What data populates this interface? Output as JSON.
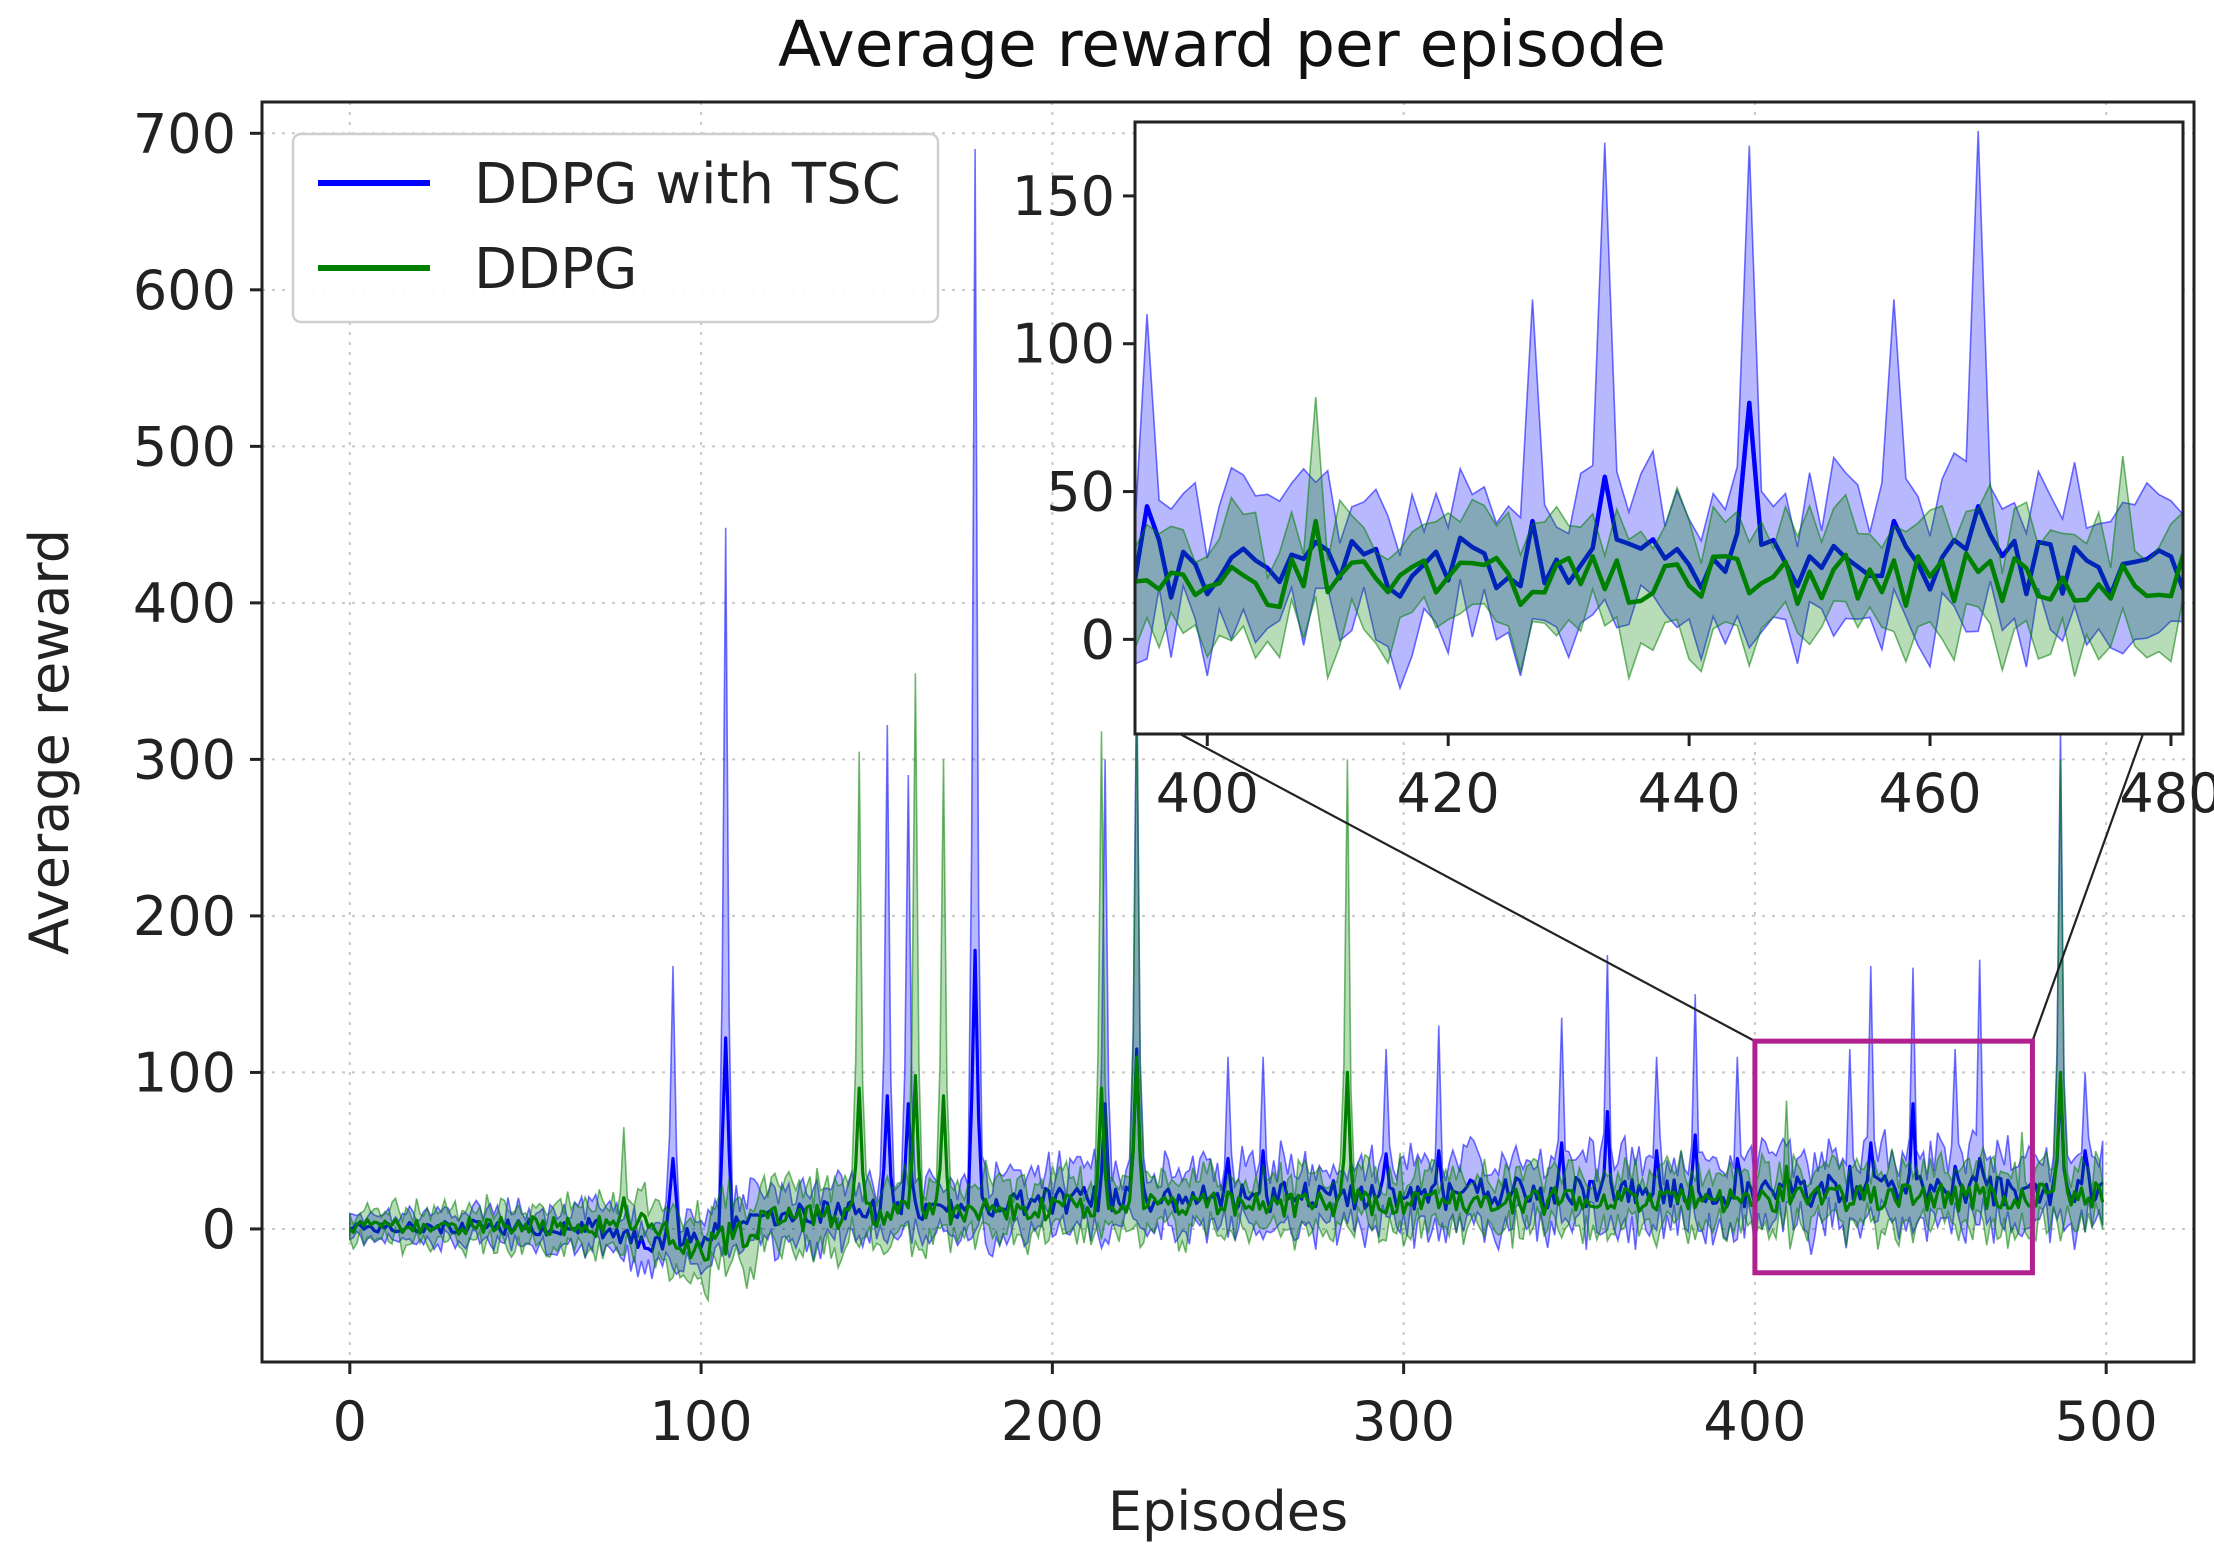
{
  "chart_data": {
    "type": "line",
    "title": "Average reward per episode",
    "xlabel": "Episodes",
    "ylabel": "Average reward",
    "xlim": [
      -25,
      525
    ],
    "ylim": [
      -85,
      720
    ],
    "xticks": [
      0,
      100,
      200,
      300,
      400,
      500
    ],
    "yticks": [
      0,
      100,
      200,
      300,
      400,
      500,
      600,
      700
    ],
    "grid": true,
    "legend_position": "top-left",
    "series": [
      {
        "name": "DDPG with TSC",
        "color": "#0000ff",
        "noise_seed": 17,
        "x_range": [
          0,
          499
        ],
        "mean_baseline": [
          [
            0,
            2
          ],
          [
            70,
            1
          ],
          [
            85,
            -8
          ],
          [
            100,
            -6
          ],
          [
            120,
            8
          ],
          [
            200,
            18
          ],
          [
            300,
            22
          ],
          [
            400,
            24
          ],
          [
            499,
            26
          ]
        ],
        "band_halfwidth": [
          [
            0,
            8
          ],
          [
            80,
            14
          ],
          [
            120,
            18
          ],
          [
            300,
            22
          ],
          [
            499,
            24
          ]
        ],
        "spikes": [
          {
            "x": 92,
            "upper": 168,
            "mean": 45
          },
          {
            "x": 107,
            "upper": 448,
            "mean": 122
          },
          {
            "x": 153,
            "upper": 322,
            "mean": 85
          },
          {
            "x": 159,
            "upper": 290,
            "mean": 80
          },
          {
            "x": 178,
            "upper": 690,
            "mean": 178
          },
          {
            "x": 215,
            "upper": 300,
            "mean": 80
          },
          {
            "x": 224,
            "upper": 360,
            "mean": 115
          },
          {
            "x": 250,
            "upper": 110,
            "mean": 45
          },
          {
            "x": 260,
            "upper": 110,
            "mean": 50
          },
          {
            "x": 295,
            "upper": 115,
            "mean": 48
          },
          {
            "x": 310,
            "upper": 130,
            "mean": 50
          },
          {
            "x": 345,
            "upper": 135,
            "mean": 55
          },
          {
            "x": 358,
            "upper": 175,
            "mean": 75
          },
          {
            "x": 372,
            "upper": 110,
            "mean": 50
          },
          {
            "x": 383,
            "upper": 150,
            "mean": 60
          },
          {
            "x": 395,
            "upper": 110,
            "mean": 45
          },
          {
            "x": 427,
            "upper": 115,
            "mean": 40
          },
          {
            "x": 433,
            "upper": 168,
            "mean": 55
          },
          {
            "x": 445,
            "upper": 167,
            "mean": 80
          },
          {
            "x": 457,
            "upper": 115,
            "mean": 40
          },
          {
            "x": 464,
            "upper": 172,
            "mean": 45
          },
          {
            "x": 487,
            "upper": 320,
            "mean": 95
          },
          {
            "x": 494,
            "upper": 100,
            "mean": 50
          }
        ]
      },
      {
        "name": "DDPG",
        "color": "#008000",
        "noise_seed": 91,
        "x_range": [
          0,
          499
        ],
        "mean_baseline": [
          [
            0,
            2
          ],
          [
            70,
            2
          ],
          [
            85,
            6
          ],
          [
            100,
            -14
          ],
          [
            120,
            6
          ],
          [
            200,
            14
          ],
          [
            300,
            17
          ],
          [
            400,
            19
          ],
          [
            499,
            21
          ]
        ],
        "band_halfwidth": [
          [
            0,
            10
          ],
          [
            80,
            16
          ],
          [
            105,
            22
          ],
          [
            200,
            18
          ],
          [
            499,
            20
          ]
        ],
        "spikes": [
          {
            "x": 78,
            "upper": 65,
            "mean": 20
          },
          {
            "x": 145,
            "upper": 305,
            "mean": 90
          },
          {
            "x": 161,
            "upper": 355,
            "mean": 98
          },
          {
            "x": 169,
            "upper": 300,
            "mean": 85
          },
          {
            "x": 214,
            "upper": 318,
            "mean": 90
          },
          {
            "x": 224,
            "upper": 340,
            "mean": 110
          },
          {
            "x": 284,
            "upper": 300,
            "mean": 100
          },
          {
            "x": 409,
            "upper": 82,
            "mean": 40
          },
          {
            "x": 476,
            "upper": 62,
            "mean": 25
          },
          {
            "x": 487,
            "upper": 300,
            "mean": 100
          }
        ]
      }
    ],
    "zoom_region": {
      "xlim": [
        400,
        479
      ],
      "ylim": [
        -28,
        120
      ],
      "border_color": "#b0208f"
    },
    "inset": {
      "xlim": [
        394,
        481
      ],
      "ylim": [
        -32,
        175
      ],
      "xticks": [
        400,
        420,
        440,
        460,
        480
      ],
      "yticks": [
        0,
        50,
        100,
        150
      ]
    }
  }
}
